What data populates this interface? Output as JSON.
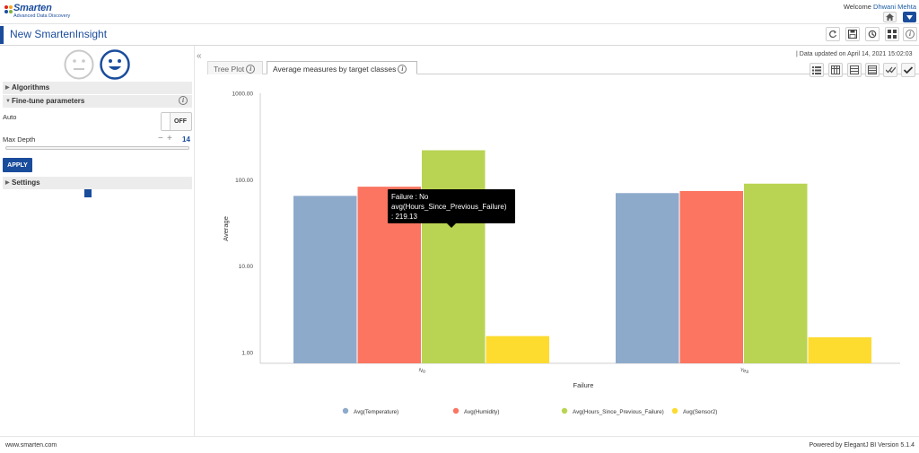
{
  "header": {
    "brand": "Smarten",
    "brand_tagline": "Advanced Data Discovery",
    "welcome_prefix": "Welcome",
    "user_name": "Dhwani Mehta"
  },
  "titlebar": {
    "title": "New SmartenInsight"
  },
  "left_panel": {
    "algorithms_label": "Algorithms",
    "finetune_label": "Fine-tune parameters",
    "auto_label": "Auto",
    "auto_toggle_text": "OFF",
    "max_depth_label": "Max Depth",
    "max_depth_value": "14",
    "max_depth_slider_fraction": 0.45,
    "apply_label": "APPLY",
    "settings_label": "Settings"
  },
  "content": {
    "updated_text": "|   Data updated on April 14, 2021 15:02:03",
    "tabs": [
      {
        "label": "Tree Plot",
        "active": false
      },
      {
        "label": "Average measures by target classes",
        "active": true
      }
    ]
  },
  "tooltip": {
    "line1": "Failure : No",
    "line2": "avg(Hours_Since_Previous_Failure)",
    "line3": ": 219.13"
  },
  "chart_data": {
    "type": "bar",
    "scale": "log",
    "categories": [
      "No",
      "Yes"
    ],
    "xlabel": "Failure",
    "ylabel": "Average",
    "ylim": [
      0.8,
      1000
    ],
    "yticks": [
      "1000.00",
      "100.00",
      "10.00",
      "1.00"
    ],
    "series": [
      {
        "name": "Avg(Temperature)",
        "color": "#8eaacb",
        "values": [
          65,
          70
        ]
      },
      {
        "name": "Avg(Humidity)",
        "color": "#fb7561",
        "values": [
          83,
          74
        ]
      },
      {
        "name": "Avg(Hours_Since_Previous_Failure)",
        "color": "#b9d452",
        "values": [
          219.13,
          90
        ]
      },
      {
        "name": "Avg(Sensor2)",
        "color": "#fddb2f",
        "values": [
          1.55,
          1.5
        ]
      }
    ],
    "legend_position": "bottom"
  },
  "footer": {
    "left": "www.smarten.com",
    "right": "Powered by ElegantJ BI Version 5.1.4"
  },
  "icons": [
    "home-icon",
    "menu-dropdown-icon",
    "refresh-icon",
    "save-icon",
    "share-icon",
    "layout-icon",
    "info-icon",
    "sad-face-icon",
    "happy-face-icon",
    "collapse-icon"
  ]
}
